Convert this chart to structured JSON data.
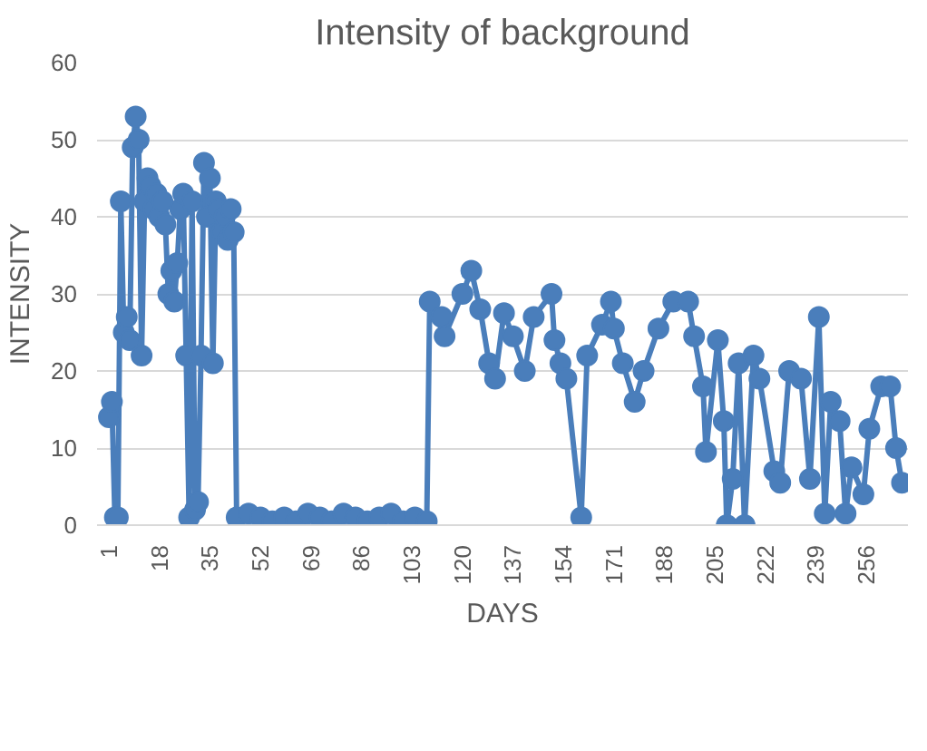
{
  "chart_data": {
    "type": "line",
    "title": "Intensity of background",
    "xlabel": "DAYS",
    "ylabel": "INTENSITY",
    "xlim": [
      -3,
      270
    ],
    "ylim": [
      0,
      60
    ],
    "xticks": [
      1,
      18,
      35,
      52,
      69,
      86,
      103,
      120,
      137,
      154,
      171,
      188,
      205,
      222,
      239,
      256
    ],
    "yticks": [
      0,
      10,
      20,
      30,
      40,
      50,
      60
    ],
    "grid": "y",
    "marker": "circle",
    "line_style": "solid",
    "series": [
      {
        "color": "#4a7ebb",
        "x": [
          1,
          2,
          3,
          4,
          5,
          6,
          7,
          8,
          9,
          10,
          11,
          12,
          13,
          14,
          15,
          16,
          17,
          18,
          19,
          20,
          21,
          22,
          23,
          24,
          25,
          26,
          27,
          28,
          29,
          30,
          31,
          32,
          33,
          34,
          35,
          36,
          37,
          38,
          39,
          40,
          41,
          42,
          43,
          44,
          48,
          52,
          56,
          60,
          64,
          68,
          72,
          76,
          80,
          84,
          88,
          92,
          96,
          100,
          104,
          108,
          109,
          113,
          114,
          120,
          123,
          126,
          129,
          131,
          134,
          137,
          141,
          144,
          150,
          151,
          153,
          155,
          160,
          162,
          167,
          170,
          171,
          174,
          178,
          181,
          186,
          191,
          196,
          198,
          201,
          202,
          206,
          208,
          209,
          211,
          213,
          215,
          218,
          220,
          225,
          227,
          230,
          234,
          237,
          240,
          242,
          244,
          247,
          249,
          251,
          255,
          257,
          261,
          264,
          266,
          268
        ],
        "values": [
          14,
          16,
          1,
          1,
          42,
          25,
          27,
          24,
          49,
          53,
          50,
          22,
          42,
          45,
          44,
          41,
          43,
          40,
          42,
          39,
          30,
          33,
          29,
          34,
          41,
          43,
          22,
          1,
          42,
          2,
          3,
          22,
          47,
          40,
          45,
          21,
          42,
          41,
          38,
          40,
          37,
          41,
          38,
          1,
          1.5,
          1,
          0.5,
          1,
          0.5,
          1.5,
          1,
          0.5,
          1.5,
          1,
          0.5,
          1,
          1.5,
          0.5,
          1,
          0.5,
          29,
          27,
          24.5,
          30,
          33,
          28,
          21,
          19,
          27.5,
          24.5,
          20,
          27,
          30,
          24,
          21,
          19,
          1,
          22,
          26,
          29,
          25.5,
          21,
          16,
          20,
          25.5,
          29,
          29,
          24.5,
          18,
          9.5,
          24,
          13.5,
          0,
          6,
          21,
          0,
          22,
          19,
          7,
          5.5,
          20,
          19,
          6,
          27,
          1.5,
          16,
          13.5,
          1.5,
          7.5,
          4,
          12.5,
          18,
          18,
          10,
          5.5
        ]
      }
    ]
  }
}
